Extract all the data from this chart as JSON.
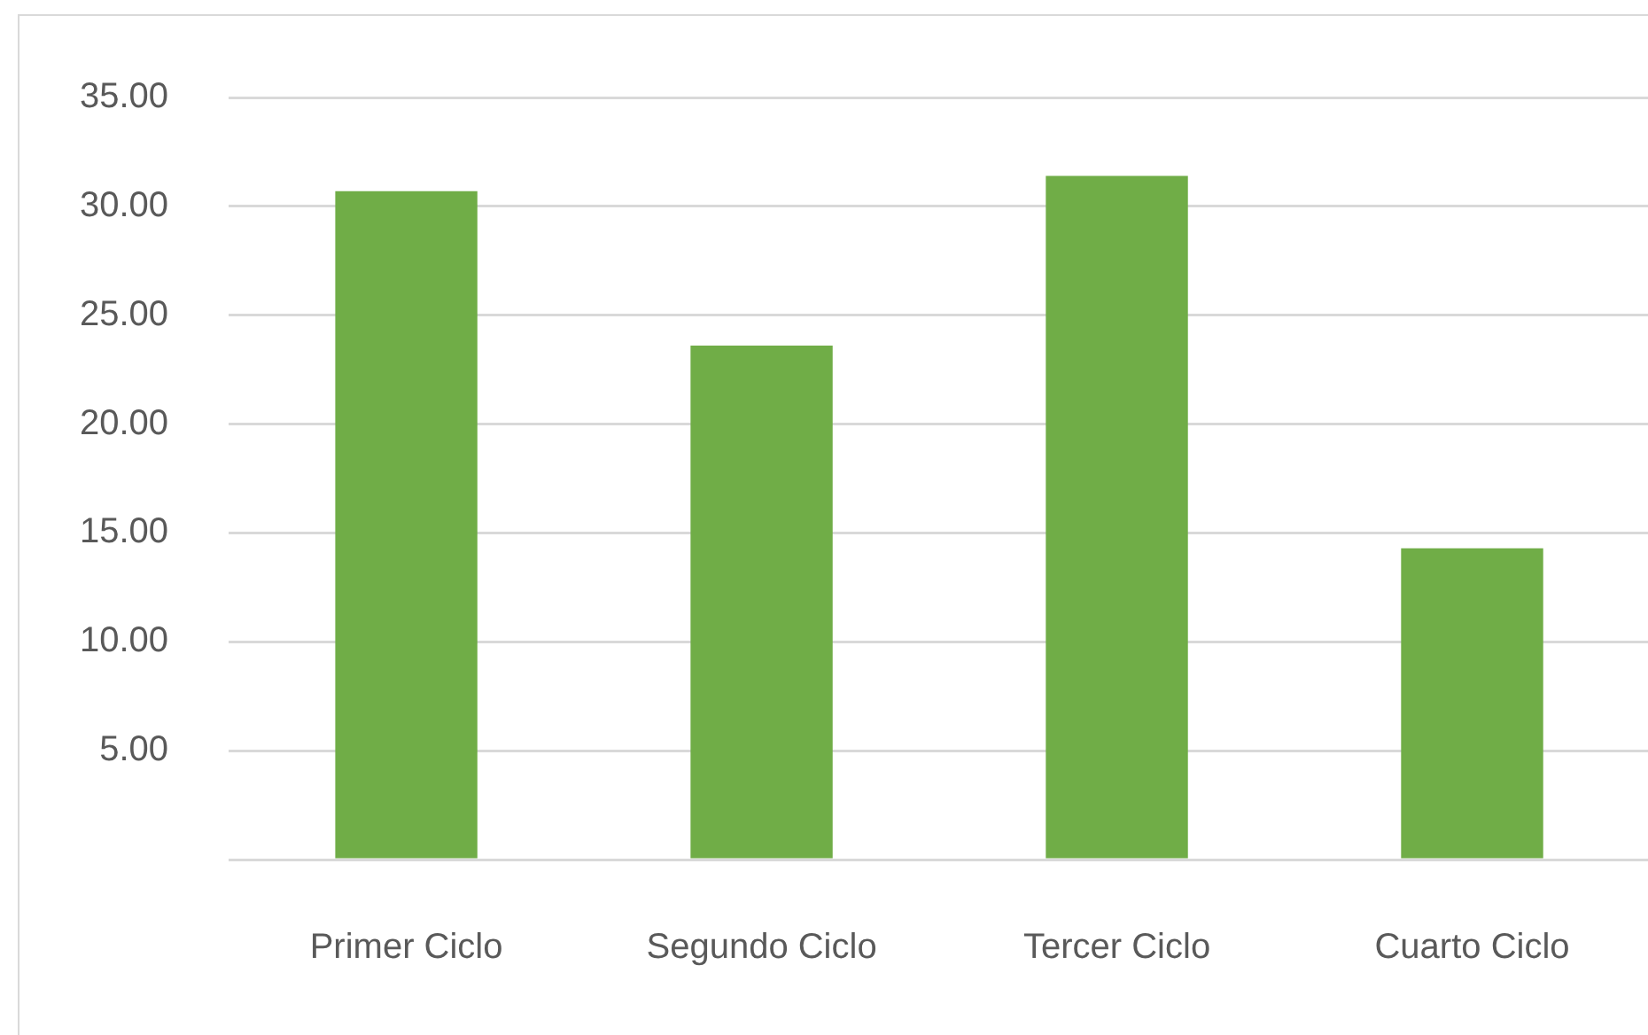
{
  "chart_data": {
    "type": "bar",
    "categories": [
      "Primer Ciclo",
      "Segundo Ciclo",
      "Tercer Ciclo",
      "Cuarto Ciclo"
    ],
    "values": [
      30.7,
      23.6,
      31.4,
      14.3
    ],
    "color": "#70ad47",
    "ylim": [
      0,
      35
    ],
    "yticks": [
      {
        "value": 0,
        "label": null
      },
      {
        "value": 5,
        "label": "5.00"
      },
      {
        "value": 10,
        "label": "10.00"
      },
      {
        "value": 15,
        "label": "15.00"
      },
      {
        "value": 20,
        "label": "20.00"
      },
      {
        "value": 25,
        "label": "25.00"
      },
      {
        "value": 30,
        "label": "30.00"
      },
      {
        "value": 35,
        "label": "35.00"
      }
    ],
    "grid": "y",
    "legend": false
  }
}
